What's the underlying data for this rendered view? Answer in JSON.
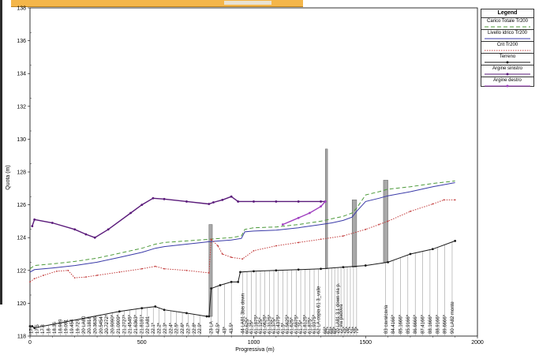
{
  "chart_data": {
    "type": "line",
    "xlabel": "Progressiva (m)",
    "ylabel": "Quota (m)",
    "xlim": [
      0,
      2000
    ],
    "ylim": [
      118,
      138
    ],
    "x_ticks": [
      0,
      500,
      1000,
      1500,
      2000
    ],
    "y_ticks": [
      118,
      120,
      122,
      124,
      126,
      128,
      130,
      132,
      134,
      136,
      138
    ],
    "grid": false,
    "legend_position": "top-right",
    "legend": {
      "title": "Legend",
      "entries": [
        "Carico Totale  Tr200",
        "Livello idrico  Tr200",
        "Crit  Tr200",
        "Terreno",
        "Argine sinistro",
        "Argine destro"
      ]
    },
    "series": [
      {
        "name": "Carico Totale  Tr200",
        "color": "#4c9a3a",
        "style": "dashed",
        "points": [
          [
            0,
            122.1
          ],
          [
            20,
            122.3
          ],
          [
            100,
            122.4
          ],
          [
            200,
            122.55
          ],
          [
            300,
            122.75
          ],
          [
            400,
            123.05
          ],
          [
            500,
            123.35
          ],
          [
            560,
            123.6
          ],
          [
            600,
            123.7
          ],
          [
            700,
            123.8
          ],
          [
            800,
            123.9
          ],
          [
            900,
            124.0
          ],
          [
            945,
            124.1
          ],
          [
            960,
            124.5
          ],
          [
            1000,
            124.6
          ],
          [
            1100,
            124.65
          ],
          [
            1200,
            124.8
          ],
          [
            1300,
            125.0
          ],
          [
            1350,
            125.15
          ],
          [
            1400,
            125.3
          ],
          [
            1440,
            125.5
          ],
          [
            1460,
            125.8
          ],
          [
            1500,
            126.6
          ],
          [
            1560,
            126.8
          ],
          [
            1600,
            126.95
          ],
          [
            1700,
            127.1
          ],
          [
            1800,
            127.3
          ],
          [
            1900,
            127.45
          ]
        ]
      },
      {
        "name": "Livello idrico  Tr200",
        "color": "#3a3aa8",
        "style": "solid",
        "points": [
          [
            0,
            121.9
          ],
          [
            20,
            122.05
          ],
          [
            100,
            122.15
          ],
          [
            200,
            122.3
          ],
          [
            300,
            122.5
          ],
          [
            400,
            122.8
          ],
          [
            500,
            123.1
          ],
          [
            560,
            123.35
          ],
          [
            600,
            123.45
          ],
          [
            700,
            123.6
          ],
          [
            800,
            123.75
          ],
          [
            900,
            123.85
          ],
          [
            945,
            123.95
          ],
          [
            960,
            124.35
          ],
          [
            1000,
            124.4
          ],
          [
            1100,
            124.45
          ],
          [
            1200,
            124.6
          ],
          [
            1300,
            124.8
          ],
          [
            1350,
            124.9
          ],
          [
            1400,
            125.05
          ],
          [
            1440,
            125.25
          ],
          [
            1460,
            125.6
          ],
          [
            1500,
            126.2
          ],
          [
            1560,
            126.4
          ],
          [
            1600,
            126.55
          ],
          [
            1700,
            126.8
          ],
          [
            1800,
            127.1
          ],
          [
            1900,
            127.35
          ]
        ]
      },
      {
        "name": "Crit  Tr200",
        "color": "#c23a3a",
        "style": "dotted",
        "points": [
          [
            0,
            121.3
          ],
          [
            20,
            121.5
          ],
          [
            60,
            121.7
          ],
          [
            120,
            121.95
          ],
          [
            170,
            122.0
          ],
          [
            200,
            121.55
          ],
          [
            250,
            121.6
          ],
          [
            300,
            121.7
          ],
          [
            400,
            121.9
          ],
          [
            500,
            122.1
          ],
          [
            560,
            122.25
          ],
          [
            600,
            122.1
          ],
          [
            700,
            122.0
          ],
          [
            800,
            121.85
          ],
          [
            810,
            123.9
          ],
          [
            840,
            123.5
          ],
          [
            860,
            123.0
          ],
          [
            900,
            122.8
          ],
          [
            950,
            122.7
          ],
          [
            1000,
            123.2
          ],
          [
            1100,
            123.5
          ],
          [
            1200,
            123.7
          ],
          [
            1300,
            123.9
          ],
          [
            1400,
            124.1
          ],
          [
            1500,
            124.5
          ],
          [
            1560,
            124.8
          ],
          [
            1600,
            125.0
          ],
          [
            1700,
            125.6
          ],
          [
            1800,
            126.05
          ],
          [
            1850,
            126.3
          ],
          [
            1900,
            126.3
          ]
        ]
      },
      {
        "name": "Terreno",
        "color": "#1a1a1a",
        "style": "solid",
        "points": [
          [
            0,
            118.6
          ],
          [
            10,
            118.6
          ],
          [
            20,
            118.5
          ],
          [
            400,
            119.5
          ],
          [
            500,
            119.7
          ],
          [
            560,
            119.8
          ],
          [
            600,
            119.6
          ],
          [
            700,
            119.4
          ],
          [
            790,
            119.2
          ],
          [
            800,
            119.2
          ],
          [
            810,
            120.9
          ],
          [
            850,
            121.1
          ],
          [
            900,
            121.3
          ],
          [
            930,
            121.3
          ],
          [
            940,
            121.9
          ],
          [
            1000,
            121.95
          ],
          [
            1100,
            122.0
          ],
          [
            1200,
            122.05
          ],
          [
            1300,
            122.1
          ],
          [
            1400,
            122.2
          ],
          [
            1500,
            122.3
          ],
          [
            1600,
            122.5
          ],
          [
            1700,
            123.0
          ],
          [
            1800,
            123.3
          ],
          [
            1900,
            123.8
          ]
        ]
      },
      {
        "name": "Argine sinistro",
        "color": "#5a1a7a",
        "style": "solid",
        "points": [
          [
            10,
            124.7
          ],
          [
            20,
            125.1
          ],
          [
            100,
            124.9
          ],
          [
            200,
            124.5
          ],
          [
            250,
            124.2
          ],
          [
            290,
            124.0
          ],
          [
            350,
            124.5
          ],
          [
            450,
            125.5
          ],
          [
            500,
            126.0
          ],
          [
            550,
            126.4
          ],
          [
            600,
            126.35
          ],
          [
            700,
            126.2
          ],
          [
            800,
            126.05
          ],
          [
            820,
            126.15
          ],
          [
            860,
            126.3
          ],
          [
            900,
            126.5
          ],
          [
            930,
            126.2
          ],
          [
            1000,
            126.2
          ],
          [
            1100,
            126.2
          ],
          [
            1200,
            126.2
          ],
          [
            1300,
            126.2
          ],
          [
            1320,
            126.2
          ]
        ]
      },
      {
        "name": "Argine destro",
        "color": "#a040c0",
        "style": "solid",
        "points": [
          [
            1130,
            124.8
          ],
          [
            1200,
            125.2
          ],
          [
            1250,
            125.5
          ],
          [
            1300,
            125.9
          ],
          [
            1320,
            126.2
          ]
        ]
      }
    ],
    "annotations": [
      "17",
      "17.5",
      "17.8",
      "18",
      "18.36",
      "18.909",
      "19.091",
      "19.454",
      "19.727",
      "20 LA80",
      "20.1818",
      "20.3636",
      "20.5454",
      "20.7272*",
      "20.9090*",
      "21.0909*",
      "21.2727*",
      "21.4545*",
      "21.6363*",
      "21.8181*",
      "22 LA81",
      "22.1*",
      "22.2*",
      "22.3*",
      "22.4*",
      "22.5*",
      "22.6*",
      "22.7*",
      "22.8*",
      "22.9*",
      "23 LA",
      "42.5*",
      "43*",
      "43.5*",
      "44 LA81 3bis down",
      "60.625*",
      "61.25*",
      "61.1875*",
      "61.125*",
      "61.0625*",
      "61.3125*",
      "61.375*",
      "61.4375*",
      "61.5*",
      "61.5625*",
      "61.625*",
      "61.6875*",
      "61.75*",
      "61.8125*",
      "61.875*",
      "61.9375*",
      "62 LA copia 61 3_valle",
      "66*",
      "67*",
      "68*",
      "69*",
      "70 LA81 3.1 down via p.",
      "72 via padova",
      "75*",
      "76*",
      "77*",
      "78*",
      "79*",
      "83 cavalcavia",
      "84.4166*",
      "85.1666*",
      "85.9166*",
      "86.6666*",
      "87.4166*",
      "88.1666*",
      "88.9166*",
      "89.6666*",
      "90 LA82 monte"
    ]
  }
}
